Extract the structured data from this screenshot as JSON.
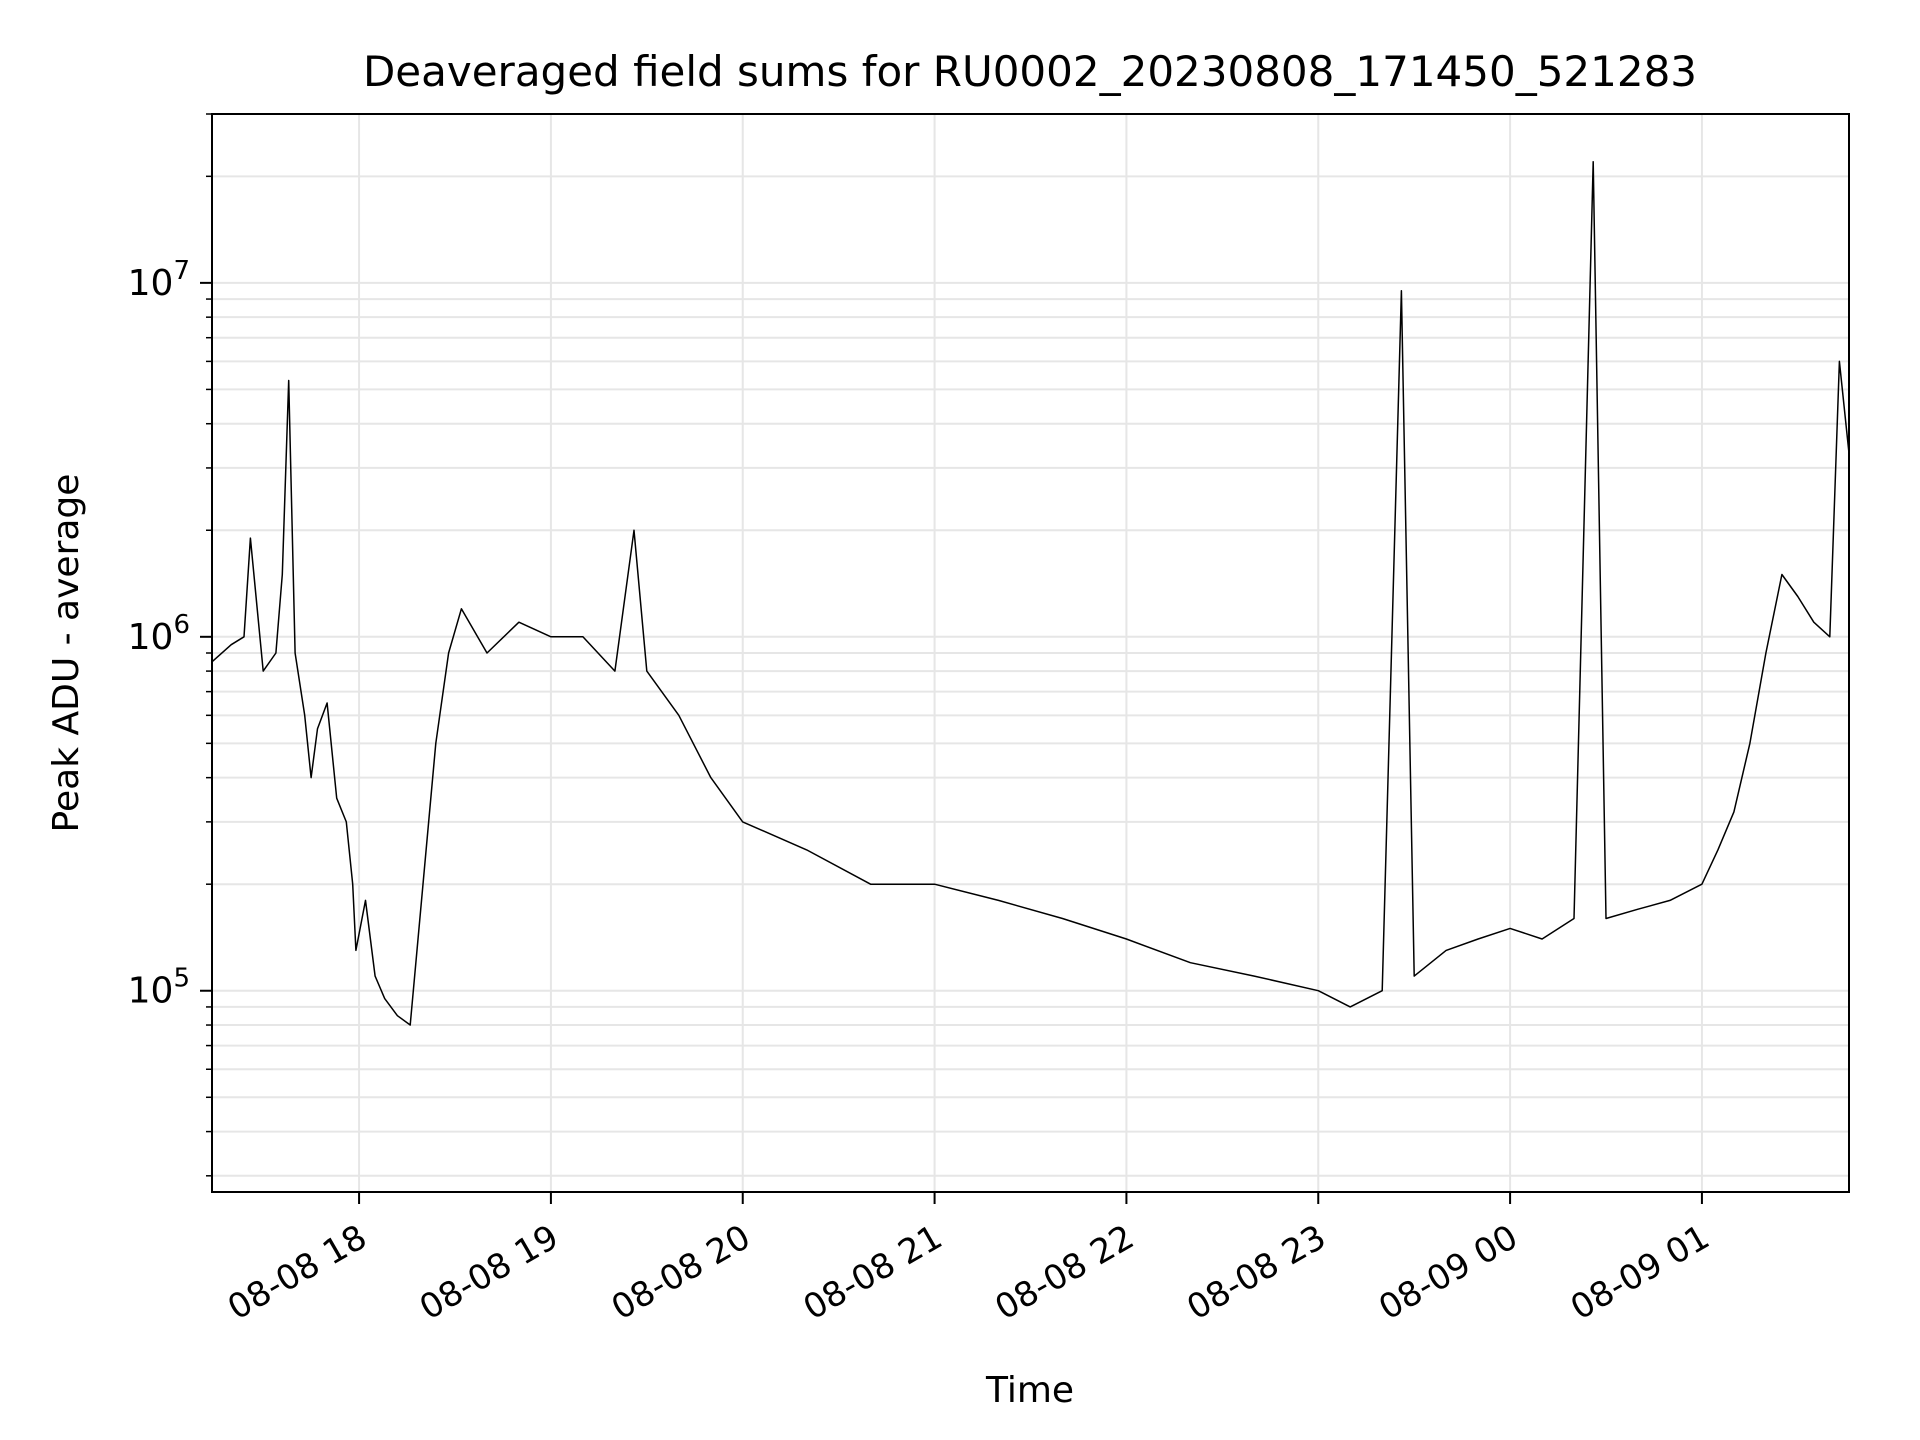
{
  "chart_data": {
    "type": "line",
    "title": "Deaveraged field sums for RU0002_20230808_171450_521283",
    "xlabel": "Time",
    "ylabel": "Peak ADU - average",
    "x_axis_kind": "datetime",
    "xlim": [
      "2023-08-08 17:14",
      "2023-08-09 01:46"
    ],
    "ylim": [
      27000,
      30000000
    ],
    "yscale": "log",
    "grid": true,
    "x_ticks": [
      {
        "value": "2023-08-08 18:00",
        "label": "08-08 18"
      },
      {
        "value": "2023-08-08 19:00",
        "label": "08-08 19"
      },
      {
        "value": "2023-08-08 20:00",
        "label": "08-08 20"
      },
      {
        "value": "2023-08-08 21:00",
        "label": "08-08 21"
      },
      {
        "value": "2023-08-08 22:00",
        "label": "08-08 22"
      },
      {
        "value": "2023-08-08 23:00",
        "label": "08-08 23"
      },
      {
        "value": "2023-08-09 00:00",
        "label": "08-09 00"
      },
      {
        "value": "2023-08-09 01:00",
        "label": "08-09 01"
      }
    ],
    "y_ticks": [
      {
        "value": 100000,
        "base": "10",
        "exp": "5"
      },
      {
        "value": 1000000,
        "base": "10",
        "exp": "6"
      },
      {
        "value": 10000000,
        "base": "10",
        "exp": "7"
      }
    ],
    "line_color": "#000000",
    "grid_color": "#e6e6e6",
    "series": [
      {
        "x": [
          "2023-08-08 17:14",
          "2023-08-08 17:20",
          "2023-08-08 17:24",
          "2023-08-08 17:26",
          "2023-08-08 17:30",
          "2023-08-08 17:34",
          "2023-08-08 17:36",
          "2023-08-08 17:38",
          "2023-08-08 17:40",
          "2023-08-08 17:43",
          "2023-08-08 17:45",
          "2023-08-08 17:47",
          "2023-08-08 17:50",
          "2023-08-08 17:53",
          "2023-08-08 17:56",
          "2023-08-08 17:58",
          "2023-08-08 17:59",
          "2023-08-08 18:02",
          "2023-08-08 18:05",
          "2023-08-08 18:08",
          "2023-08-08 18:12",
          "2023-08-08 18:16",
          "2023-08-08 18:20",
          "2023-08-08 18:24",
          "2023-08-08 18:28",
          "2023-08-08 18:32",
          "2023-08-08 18:40",
          "2023-08-08 18:50",
          "2023-08-08 19:00",
          "2023-08-08 19:10",
          "2023-08-08 19:20",
          "2023-08-08 19:26",
          "2023-08-08 19:30",
          "2023-08-08 19:40",
          "2023-08-08 19:50",
          "2023-08-08 20:00",
          "2023-08-08 20:20",
          "2023-08-08 20:40",
          "2023-08-08 21:00",
          "2023-08-08 21:20",
          "2023-08-08 21:40",
          "2023-08-08 22:00",
          "2023-08-08 22:20",
          "2023-08-08 22:40",
          "2023-08-08 23:00",
          "2023-08-08 23:10",
          "2023-08-08 23:20",
          "2023-08-08 23:26",
          "2023-08-08 23:30",
          "2023-08-08 23:40",
          "2023-08-08 23:50",
          "2023-08-09 00:00",
          "2023-08-09 00:10",
          "2023-08-09 00:20",
          "2023-08-09 00:26",
          "2023-08-09 00:30",
          "2023-08-09 00:40",
          "2023-08-09 00:50",
          "2023-08-09 01:00",
          "2023-08-09 01:05",
          "2023-08-09 01:10",
          "2023-08-09 01:15",
          "2023-08-09 01:20",
          "2023-08-09 01:25",
          "2023-08-09 01:30",
          "2023-08-09 01:35",
          "2023-08-09 01:40",
          "2023-08-09 01:43",
          "2023-08-09 01:46"
        ],
        "y": [
          850000,
          950000,
          1000000,
          1900000,
          800000,
          900000,
          1500000,
          5300000,
          900000,
          600000,
          400000,
          550000,
          650000,
          350000,
          300000,
          200000,
          130000,
          180000,
          110000,
          95000,
          85000,
          80000,
          200000,
          500000,
          900000,
          1200000,
          900000,
          1100000,
          1000000,
          1000000,
          800000,
          2000000,
          800000,
          600000,
          400000,
          300000,
          250000,
          200000,
          200000,
          180000,
          160000,
          140000,
          120000,
          110000,
          100000,
          90000,
          100000,
          9500000,
          110000,
          130000,
          140000,
          150000,
          140000,
          160000,
          22000000,
          160000,
          170000,
          180000,
          200000,
          250000,
          320000,
          500000,
          900000,
          1500000,
          1300000,
          1100000,
          1000000,
          6000000,
          3300000
        ]
      }
    ]
  }
}
